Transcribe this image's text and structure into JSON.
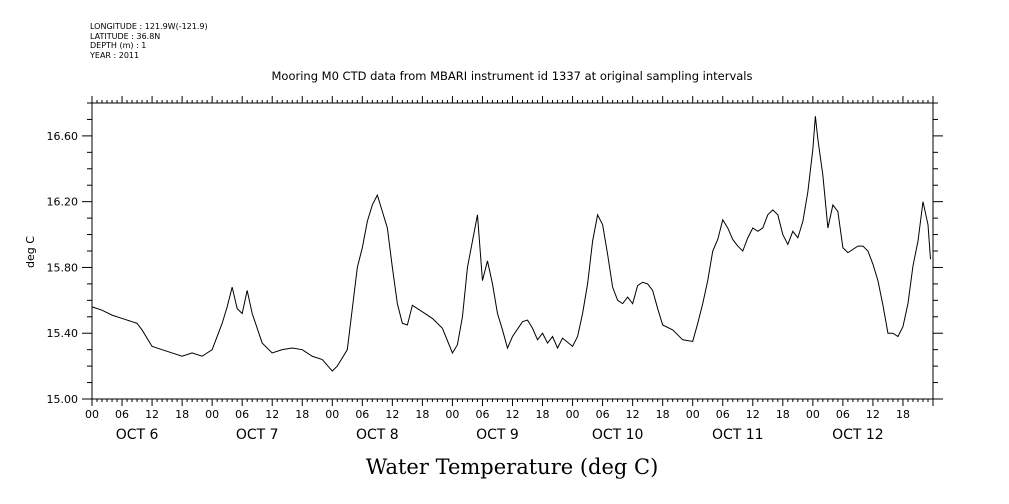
{
  "meta": {
    "longitude": "LONGITUDE : 121.9W(-121.9)",
    "latitude": "LATITUDE : 36.8N",
    "depth": "DEPTH (m) : 1",
    "year": "YEAR : 2011"
  },
  "chart_data": {
    "type": "line",
    "title": "Mooring M0 CTD data from MBARI instrument id 1337 at original sampling intervals",
    "xlabel": "Water Temperature (deg C)",
    "ylabel": "deg C",
    "ylim": [
      15.0,
      16.8
    ],
    "yticks": [
      "15.00",
      "15.40",
      "15.80",
      "16.20",
      "16.60"
    ],
    "xlim": [
      "2011-10-06T00:00",
      "2011-10-13T00:00"
    ],
    "hour_ticks": [
      "00",
      "06",
      "12",
      "18"
    ],
    "day_labels": [
      "OCT  6",
      "OCT  7",
      "OCT  8",
      "OCT  9",
      "OCT 10",
      "OCT 11",
      "OCT 12"
    ],
    "grid": false,
    "series": [
      {
        "points": [
          [
            "2011-10-06T00:00",
            15.56
          ],
          [
            "2011-10-06T02:00",
            15.54
          ],
          [
            "2011-10-06T04:00",
            15.51
          ],
          [
            "2011-10-06T06:00",
            15.49
          ],
          [
            "2011-10-06T08:00",
            15.47
          ],
          [
            "2011-10-06T09:00",
            15.46
          ],
          [
            "2011-10-06T10:00",
            15.42
          ],
          [
            "2011-10-06T12:00",
            15.32
          ],
          [
            "2011-10-06T14:00",
            15.3
          ],
          [
            "2011-10-06T16:00",
            15.28
          ],
          [
            "2011-10-06T18:00",
            15.26
          ],
          [
            "2011-10-06T20:00",
            15.28
          ],
          [
            "2011-10-06T22:00",
            15.26
          ],
          [
            "2011-10-07T00:00",
            15.3
          ],
          [
            "2011-10-07T02:00",
            15.46
          ],
          [
            "2011-10-07T03:00",
            15.56
          ],
          [
            "2011-10-07T04:00",
            15.68
          ],
          [
            "2011-10-07T05:00",
            15.55
          ],
          [
            "2011-10-07T06:00",
            15.52
          ],
          [
            "2011-10-07T07:00",
            15.66
          ],
          [
            "2011-10-07T08:00",
            15.52
          ],
          [
            "2011-10-07T10:00",
            15.34
          ],
          [
            "2011-10-07T12:00",
            15.28
          ],
          [
            "2011-10-07T14:00",
            15.3
          ],
          [
            "2011-10-07T16:00",
            15.31
          ],
          [
            "2011-10-07T18:00",
            15.3
          ],
          [
            "2011-10-07T20:00",
            15.26
          ],
          [
            "2011-10-07T22:00",
            15.24
          ],
          [
            "2011-10-08T00:00",
            15.17
          ],
          [
            "2011-10-08T01:00",
            15.2
          ],
          [
            "2011-10-08T03:00",
            15.3
          ],
          [
            "2011-10-08T04:00",
            15.55
          ],
          [
            "2011-10-08T05:00",
            15.8
          ],
          [
            "2011-10-08T06:00",
            15.92
          ],
          [
            "2011-10-08T07:00",
            16.08
          ],
          [
            "2011-10-08T08:00",
            16.18
          ],
          [
            "2011-10-08T09:00",
            16.24
          ],
          [
            "2011-10-08T10:00",
            16.14
          ],
          [
            "2011-10-08T11:00",
            16.04
          ],
          [
            "2011-10-08T12:00",
            15.8
          ],
          [
            "2011-10-08T13:00",
            15.58
          ],
          [
            "2011-10-08T14:00",
            15.46
          ],
          [
            "2011-10-08T15:00",
            15.45
          ],
          [
            "2011-10-08T16:00",
            15.57
          ],
          [
            "2011-10-08T18:00",
            15.53
          ],
          [
            "2011-10-08T20:00",
            15.49
          ],
          [
            "2011-10-08T22:00",
            15.43
          ],
          [
            "2011-10-09T00:00",
            15.28
          ],
          [
            "2011-10-09T01:00",
            15.33
          ],
          [
            "2011-10-09T02:00",
            15.5
          ],
          [
            "2011-10-09T03:00",
            15.8
          ],
          [
            "2011-10-09T04:00",
            15.96
          ],
          [
            "2011-10-09T05:00",
            16.12
          ],
          [
            "2011-10-09T06:00",
            15.72
          ],
          [
            "2011-10-09T07:00",
            15.84
          ],
          [
            "2011-10-09T08:00",
            15.7
          ],
          [
            "2011-10-09T09:00",
            15.52
          ],
          [
            "2011-10-09T10:00",
            15.42
          ],
          [
            "2011-10-09T11:00",
            15.31
          ],
          [
            "2011-10-09T12:00",
            15.38
          ],
          [
            "2011-10-09T14:00",
            15.47
          ],
          [
            "2011-10-09T15:00",
            15.48
          ],
          [
            "2011-10-09T16:00",
            15.43
          ],
          [
            "2011-10-09T17:00",
            15.36
          ],
          [
            "2011-10-09T18:00",
            15.4
          ],
          [
            "2011-10-09T19:00",
            15.34
          ],
          [
            "2011-10-09T20:00",
            15.38
          ],
          [
            "2011-10-09T21:00",
            15.31
          ],
          [
            "2011-10-09T22:00",
            15.37
          ],
          [
            "2011-10-10T00:00",
            15.32
          ],
          [
            "2011-10-10T01:00",
            15.38
          ],
          [
            "2011-10-10T02:00",
            15.52
          ],
          [
            "2011-10-10T03:00",
            15.7
          ],
          [
            "2011-10-10T04:00",
            15.96
          ],
          [
            "2011-10-10T05:00",
            16.12
          ],
          [
            "2011-10-10T06:00",
            16.06
          ],
          [
            "2011-10-10T07:00",
            15.88
          ],
          [
            "2011-10-10T08:00",
            15.68
          ],
          [
            "2011-10-10T09:00",
            15.6
          ],
          [
            "2011-10-10T10:00",
            15.58
          ],
          [
            "2011-10-10T11:00",
            15.62
          ],
          [
            "2011-10-10T12:00",
            15.58
          ],
          [
            "2011-10-10T13:00",
            15.69
          ],
          [
            "2011-10-10T14:00",
            15.71
          ],
          [
            "2011-10-10T15:00",
            15.7
          ],
          [
            "2011-10-10T16:00",
            15.66
          ],
          [
            "2011-10-10T17:00",
            15.55
          ],
          [
            "2011-10-10T18:00",
            15.45
          ],
          [
            "2011-10-10T20:00",
            15.42
          ],
          [
            "2011-10-10T22:00",
            15.36
          ],
          [
            "2011-10-11T00:00",
            15.35
          ],
          [
            "2011-10-11T01:00",
            15.46
          ],
          [
            "2011-10-11T02:00",
            15.58
          ],
          [
            "2011-10-11T03:00",
            15.72
          ],
          [
            "2011-10-11T04:00",
            15.9
          ],
          [
            "2011-10-11T05:00",
            15.97
          ],
          [
            "2011-10-11T06:00",
            16.09
          ],
          [
            "2011-10-11T07:00",
            16.04
          ],
          [
            "2011-10-11T08:00",
            15.97
          ],
          [
            "2011-10-11T09:00",
            15.93
          ],
          [
            "2011-10-11T10:00",
            15.9
          ],
          [
            "2011-10-11T11:00",
            15.98
          ],
          [
            "2011-10-11T12:00",
            16.04
          ],
          [
            "2011-10-11T13:00",
            16.02
          ],
          [
            "2011-10-11T14:00",
            16.04
          ],
          [
            "2011-10-11T15:00",
            16.12
          ],
          [
            "2011-10-11T16:00",
            16.15
          ],
          [
            "2011-10-11T17:00",
            16.12
          ],
          [
            "2011-10-11T18:00",
            16.0
          ],
          [
            "2011-10-11T19:00",
            15.94
          ],
          [
            "2011-10-11T20:00",
            16.02
          ],
          [
            "2011-10-11T21:00",
            15.98
          ],
          [
            "2011-10-11T22:00",
            16.08
          ],
          [
            "2011-10-11T23:00",
            16.26
          ],
          [
            "2011-10-12T00:00",
            16.52
          ],
          [
            "2011-10-12T00:30",
            16.72
          ],
          [
            "2011-10-12T01:00",
            16.58
          ],
          [
            "2011-10-12T02:00",
            16.36
          ],
          [
            "2011-10-12T03:00",
            16.04
          ],
          [
            "2011-10-12T04:00",
            16.18
          ],
          [
            "2011-10-12T05:00",
            16.14
          ],
          [
            "2011-10-12T06:00",
            15.92
          ],
          [
            "2011-10-12T07:00",
            15.89
          ],
          [
            "2011-10-12T08:00",
            15.91
          ],
          [
            "2011-10-12T09:00",
            15.93
          ],
          [
            "2011-10-12T10:00",
            15.93
          ],
          [
            "2011-10-12T11:00",
            15.9
          ],
          [
            "2011-10-12T12:00",
            15.82
          ],
          [
            "2011-10-12T13:00",
            15.72
          ],
          [
            "2011-10-12T14:00",
            15.57
          ],
          [
            "2011-10-12T15:00",
            15.4
          ],
          [
            "2011-10-12T16:00",
            15.4
          ],
          [
            "2011-10-12T17:00",
            15.38
          ],
          [
            "2011-10-12T18:00",
            15.44
          ],
          [
            "2011-10-12T19:00",
            15.58
          ],
          [
            "2011-10-12T20:00",
            15.81
          ],
          [
            "2011-10-12T21:00",
            15.96
          ],
          [
            "2011-10-12T22:00",
            16.2
          ],
          [
            "2011-10-12T23:00",
            16.06
          ],
          [
            "2011-10-12T23:30",
            15.85
          ]
        ]
      }
    ]
  }
}
